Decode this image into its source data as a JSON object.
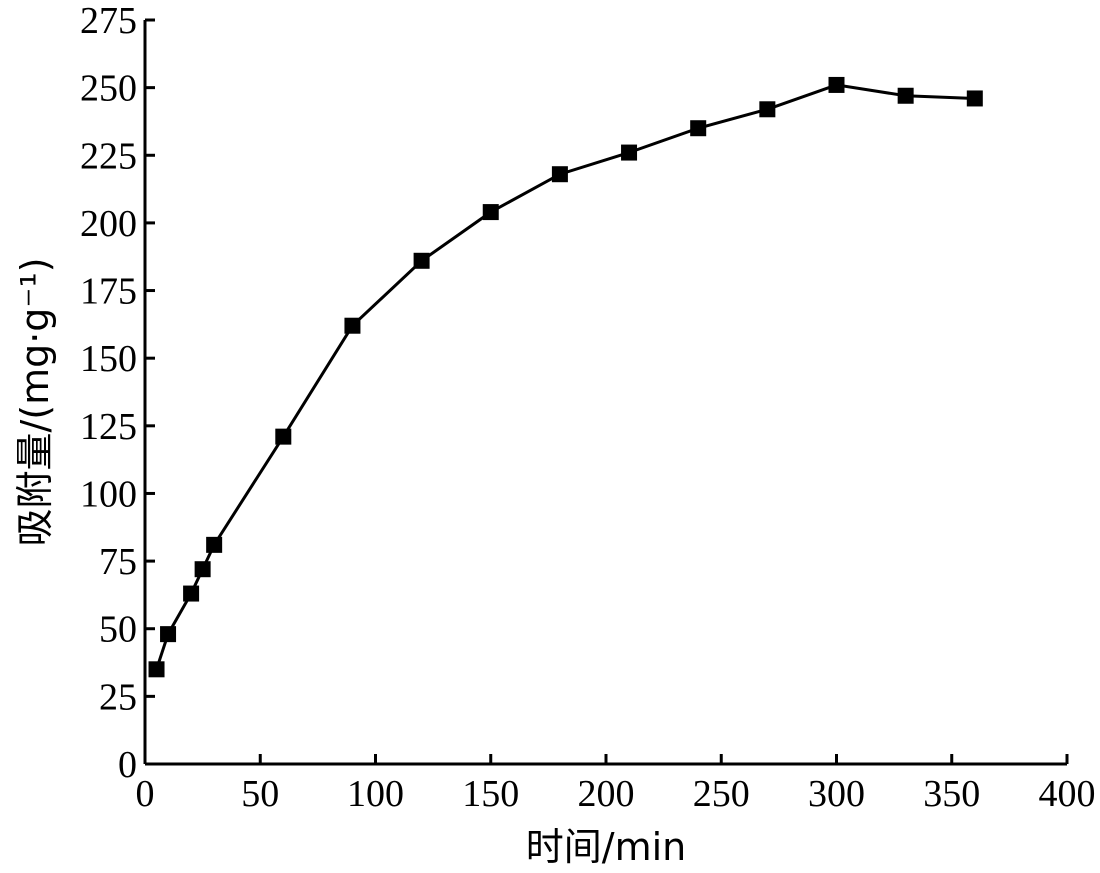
{
  "chart_data": {
    "type": "line",
    "title": "",
    "xlabel": "时间/min",
    "ylabel": "吸附量/(mg·g⁻¹)",
    "xlim": [
      0,
      400
    ],
    "ylim": [
      0,
      275
    ],
    "x_ticks": [
      0,
      50,
      100,
      150,
      200,
      250,
      300,
      350,
      400
    ],
    "y_ticks": [
      0,
      25,
      50,
      75,
      100,
      125,
      150,
      175,
      200,
      225,
      250,
      275
    ],
    "grid": false,
    "marker": "square",
    "series": [
      {
        "x": [
          5,
          10,
          20,
          25,
          30,
          60,
          90,
          120,
          150,
          180,
          210,
          240,
          270,
          300,
          330,
          360
        ],
        "y": [
          35,
          48,
          63,
          72,
          81,
          121,
          162,
          186,
          204,
          218,
          226,
          235,
          242,
          251,
          247,
          246
        ]
      }
    ]
  }
}
